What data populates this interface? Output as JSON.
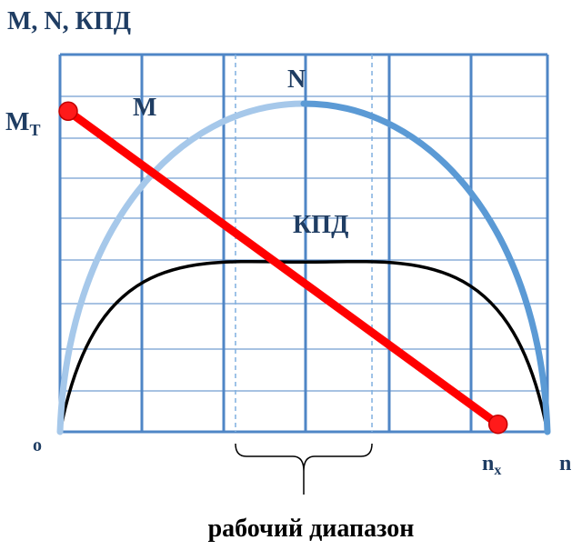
{
  "chart_data": {
    "type": "line",
    "title": "M, N, КПД",
    "xlabel": "n",
    "origin_label": "o",
    "grid": true,
    "colors": {
      "grid": "#4f86c6",
      "grid_dashed": "#7fb0e0",
      "torque": "#ff0000",
      "torque_marker": "#ff1a1a",
      "power_left": "#a6c8ea",
      "power_right": "#5b9ad5",
      "efficiency": "#000000",
      "label": "#1f3d63"
    },
    "series": [
      {
        "name": "M",
        "shape": "line",
        "points": [
          [
            0,
            0.85
          ],
          [
            0.88,
            0.02
          ]
        ]
      },
      {
        "name": "N",
        "shape": "parabola",
        "zero_at": [
          0,
          1
        ],
        "peak": [
          0.5,
          0.87
        ]
      },
      {
        "name": "КПД",
        "shape": "arc",
        "zero_at": [
          0,
          1
        ],
        "peak": [
          0.5,
          0.45
        ]
      }
    ],
    "markers": {
      "torque_start": {
        "label": "M",
        "sub": "T",
        "value": 0.85
      },
      "idle_speed": {
        "label": "n",
        "sub": "x",
        "value": 0.88
      }
    },
    "working_range": {
      "label": "рабочий диапазон",
      "from": 0.36,
      "to": 0.64
    }
  }
}
